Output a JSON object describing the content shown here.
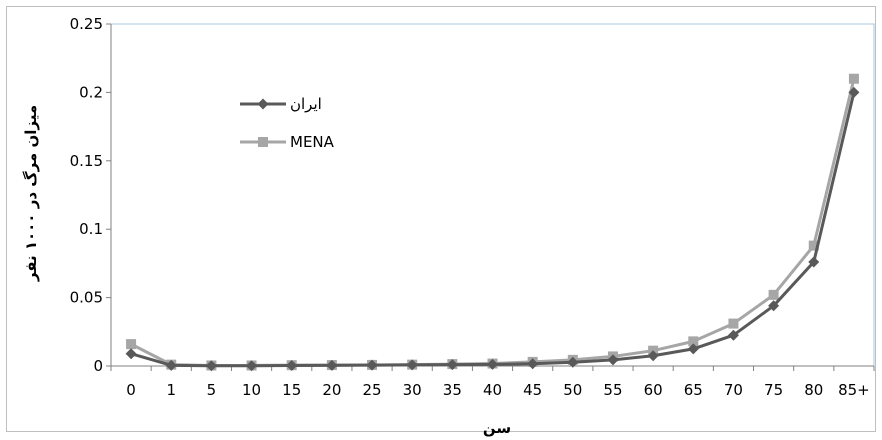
{
  "chart_data": {
    "type": "line",
    "title": "",
    "xlabel": "سن",
    "ylabel": "میزان مرگ در ۱۰۰۰ نفر",
    "categories": [
      "0",
      "1",
      "5",
      "10",
      "15",
      "20",
      "25",
      "30",
      "35",
      "40",
      "45",
      "50",
      "55",
      "60",
      "65",
      "70",
      "75",
      "80",
      "85+"
    ],
    "yticks": [
      "0",
      "0.05",
      "0.1",
      "0.15",
      "0.2",
      "0.25"
    ],
    "ylim": [
      0,
      0.25
    ],
    "grid": false,
    "legend_position": "upper-left inside",
    "series": [
      {
        "name": "ایران",
        "color": "#595959",
        "marker": "diamond",
        "values": [
          0.009,
          0.0005,
          0.0002,
          0.0002,
          0.0004,
          0.0005,
          0.0006,
          0.0008,
          0.001,
          0.0012,
          0.0016,
          0.0027,
          0.0045,
          0.0075,
          0.0125,
          0.0225,
          0.044,
          0.076,
          0.2
        ]
      },
      {
        "name": "MENA",
        "color": "#a6a6a6",
        "marker": "square",
        "values": [
          0.016,
          0.001,
          0.0004,
          0.0004,
          0.0006,
          0.0007,
          0.0008,
          0.001,
          0.0014,
          0.0018,
          0.003,
          0.0045,
          0.007,
          0.0112,
          0.018,
          0.031,
          0.052,
          0.088,
          0.21
        ]
      }
    ]
  }
}
